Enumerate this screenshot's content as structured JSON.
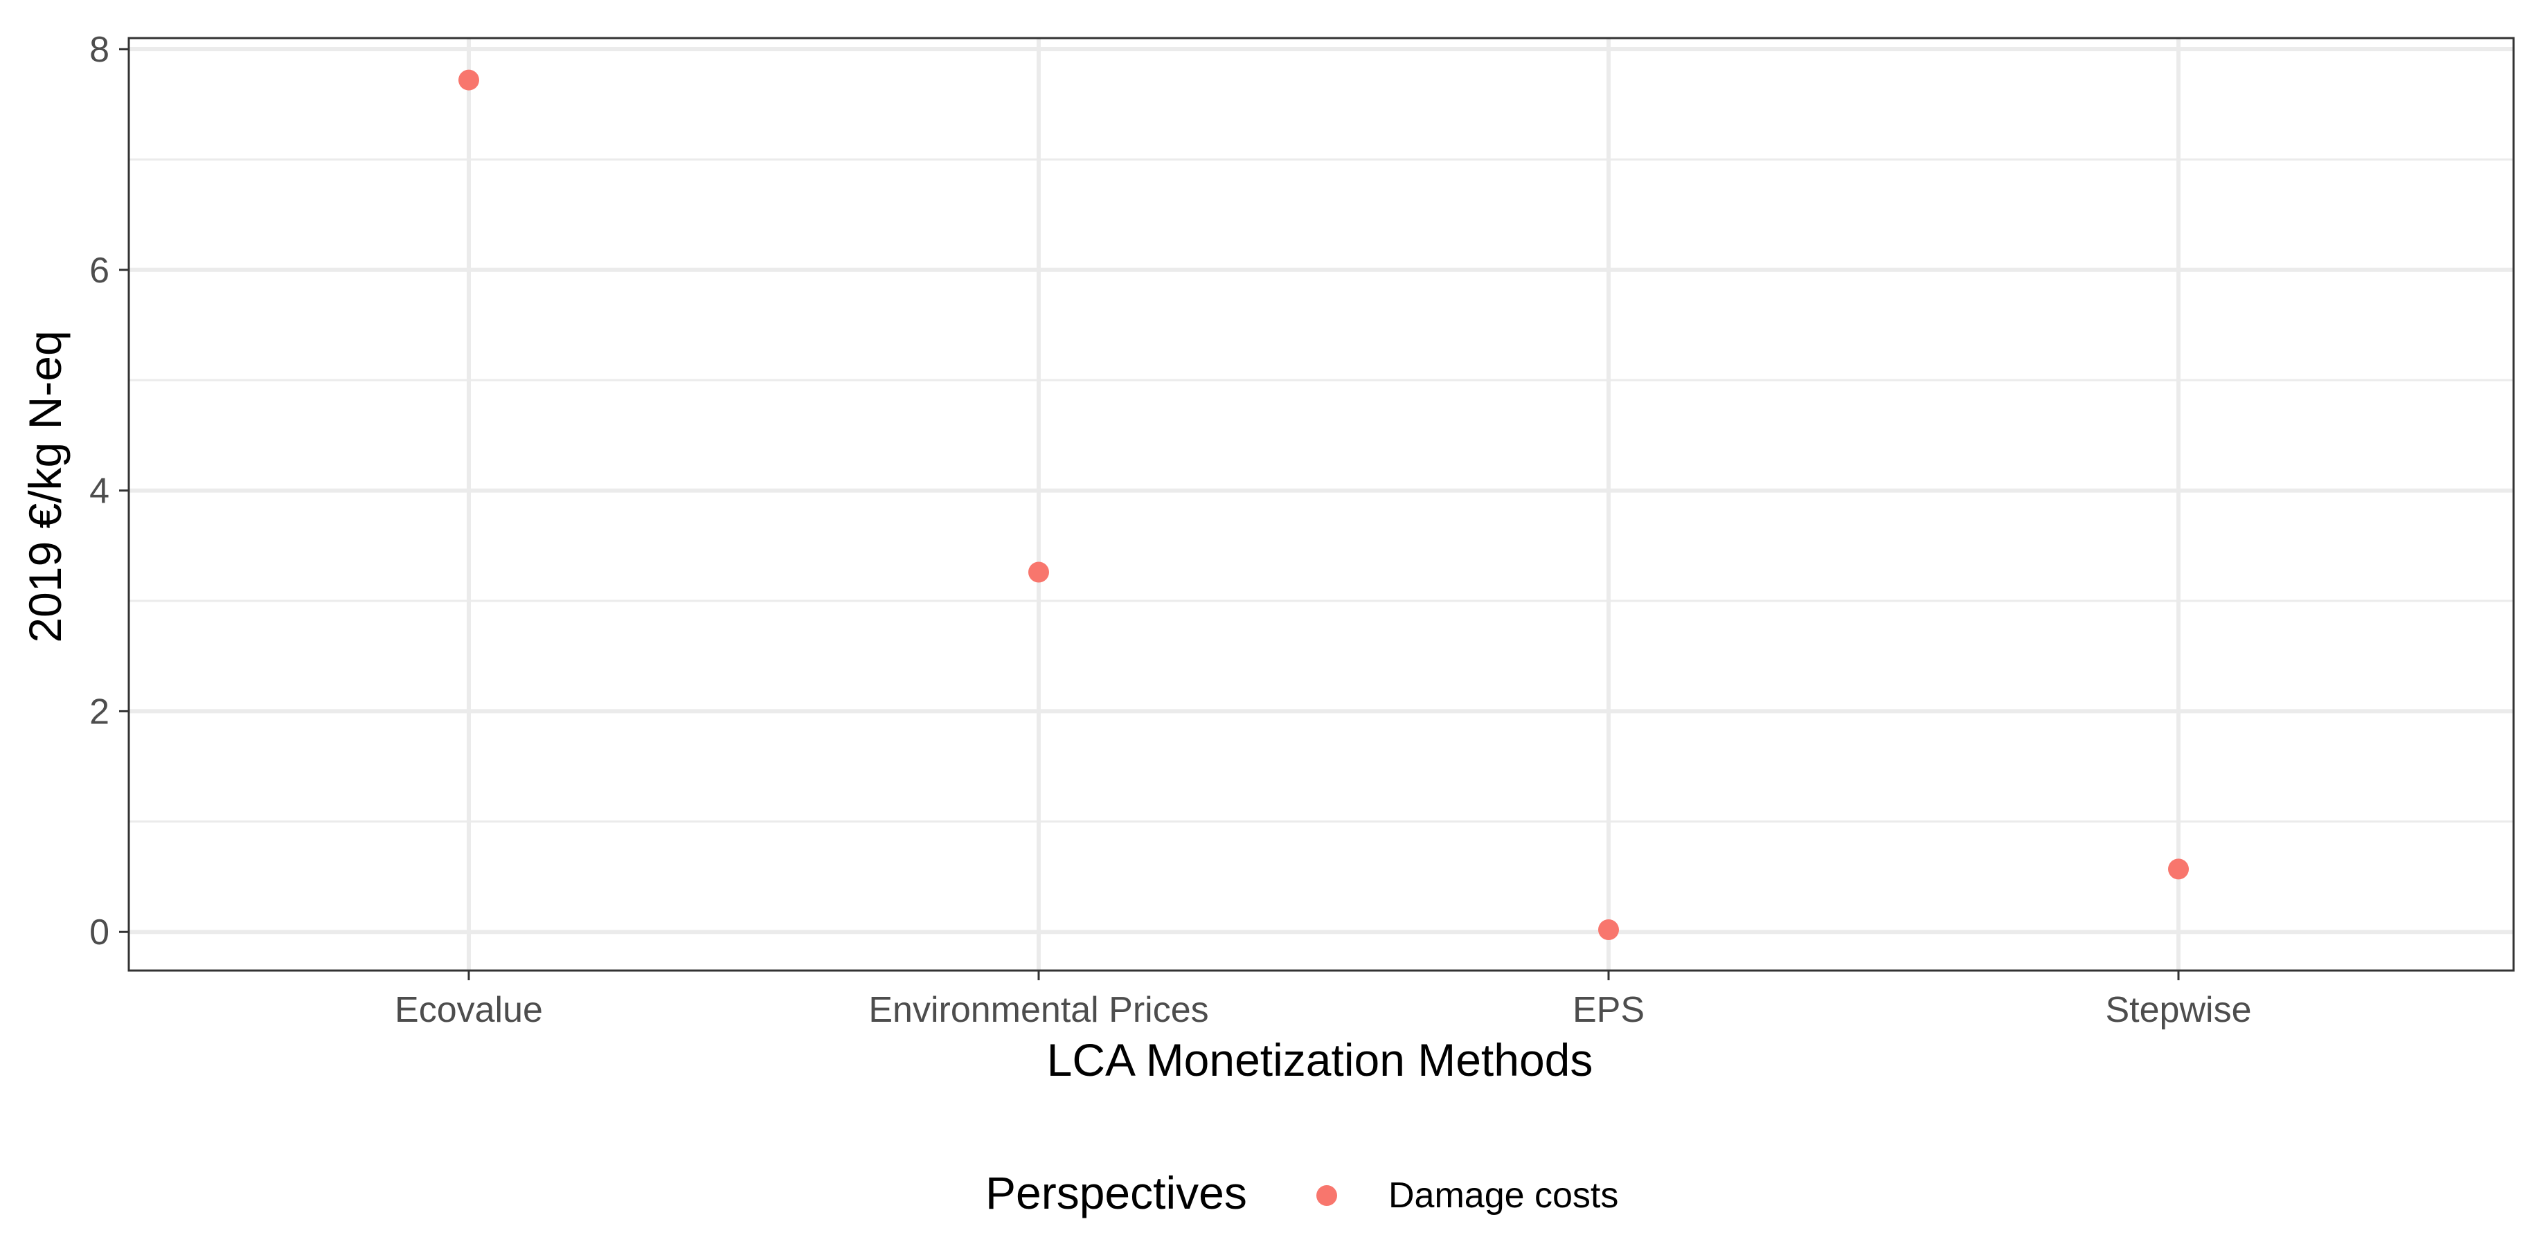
{
  "chart_data": {
    "type": "scatter",
    "title": "",
    "xlabel": "LCA Monetization Methods",
    "ylabel": "2019 €/kg N-eq",
    "categories": [
      "Ecovalue",
      "Environmental Prices",
      "EPS",
      "Stepwise"
    ],
    "ylim": [
      -0.35,
      8.1
    ],
    "yticks": [
      0,
      2,
      4,
      6,
      8
    ],
    "grid": true,
    "series": [
      {
        "name": "Damage costs",
        "color": "#F8766D",
        "values": [
          7.72,
          3.26,
          0.02,
          0.57
        ]
      }
    ],
    "legend": {
      "title": "Perspectives",
      "position": "bottom"
    }
  }
}
